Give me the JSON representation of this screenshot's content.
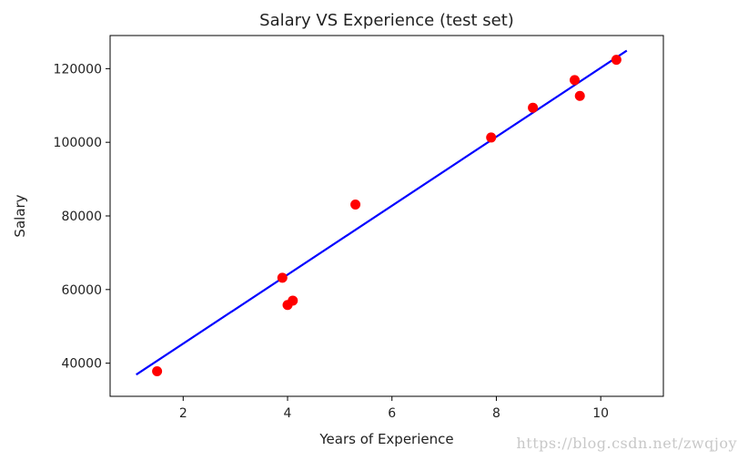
{
  "chart_data": {
    "type": "scatter",
    "title": "Salary VS Experience (test set)",
    "xlabel": "Years of Experience",
    "ylabel": "Salary",
    "xlim": [
      0.6,
      11.2
    ],
    "ylim": [
      31000,
      129000
    ],
    "xticks": [
      2,
      4,
      6,
      8,
      10
    ],
    "yticks": [
      40000,
      60000,
      80000,
      100000,
      120000
    ],
    "grid": false,
    "series": [
      {
        "kind": "scatter",
        "color": "#ff0000",
        "points": [
          {
            "x": 1.5,
            "y": 37800
          },
          {
            "x": 3.9,
            "y": 63200
          },
          {
            "x": 4.0,
            "y": 55800
          },
          {
            "x": 4.1,
            "y": 57000
          },
          {
            "x": 5.3,
            "y": 83100
          },
          {
            "x": 7.9,
            "y": 101300
          },
          {
            "x": 8.7,
            "y": 109400
          },
          {
            "x": 9.5,
            "y": 116900
          },
          {
            "x": 9.6,
            "y": 112600
          },
          {
            "x": 10.3,
            "y": 122400
          }
        ]
      },
      {
        "kind": "line",
        "color": "#0000ff",
        "points": [
          {
            "x": 1.1,
            "y": 36900
          },
          {
            "x": 10.5,
            "y": 124900
          }
        ]
      }
    ]
  },
  "watermark": "https://blog.csdn.net/zwqjoy"
}
